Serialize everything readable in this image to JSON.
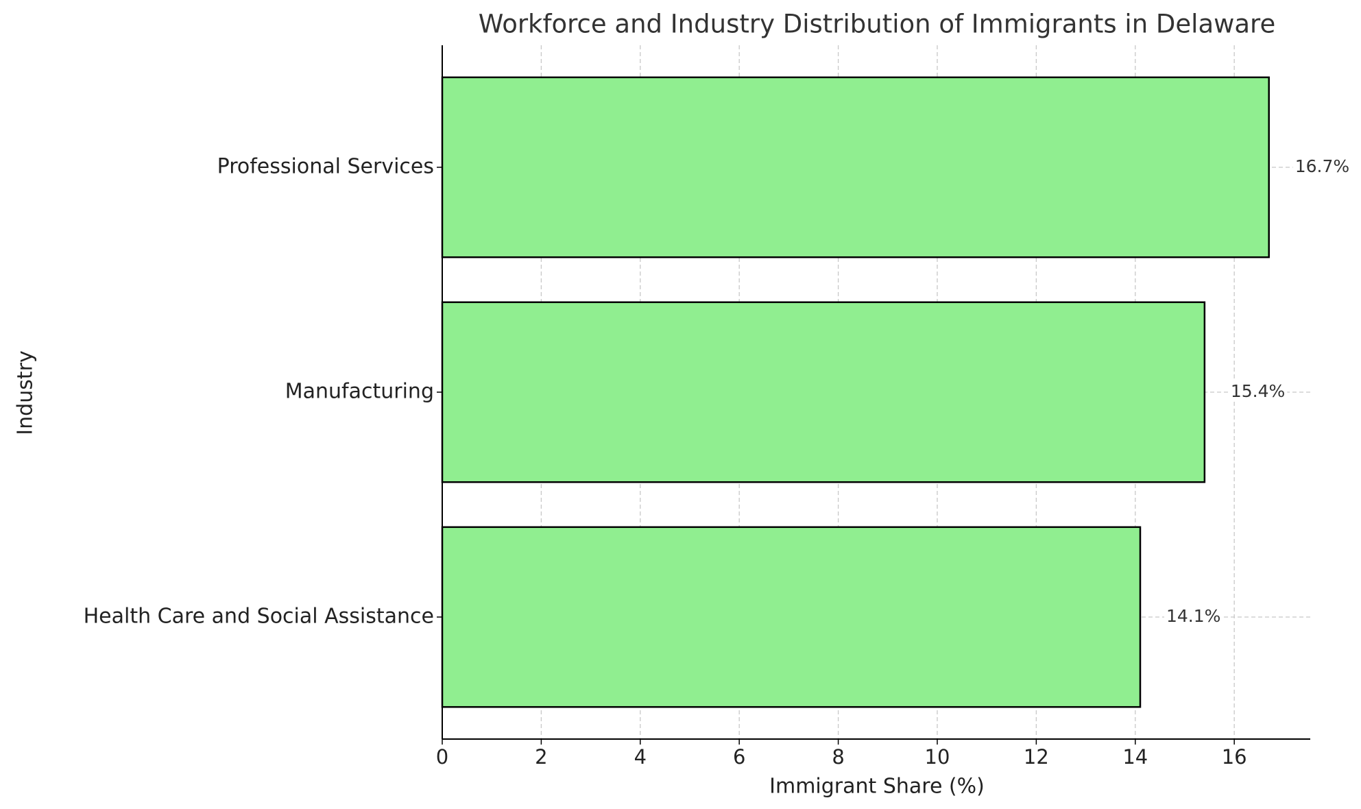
{
  "chart_data": {
    "type": "bar",
    "orientation": "horizontal",
    "title": "Workforce and Industry Distribution of Immigrants in Delaware",
    "x_label": "Immigrant Share (%)",
    "y_label": "Industry",
    "categories": [
      "Health Care and Social Assistance",
      "Manufacturing",
      "Professional Services"
    ],
    "values": [
      14.1,
      15.4,
      16.7
    ],
    "value_labels": [
      "14.1%",
      "15.4%",
      "16.7%"
    ],
    "color": "#90ee90",
    "xlim": [
      0,
      17.535
    ],
    "xticks": [
      0,
      2,
      4,
      6,
      8,
      10,
      12,
      14,
      16
    ],
    "grid": true
  }
}
